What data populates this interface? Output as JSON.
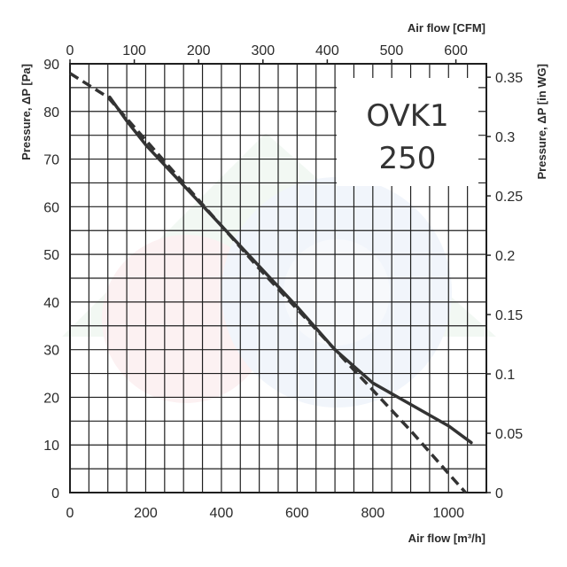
{
  "chart_data": {
    "type": "line",
    "title": "",
    "model_label": [
      "OVK1",
      "250"
    ],
    "xlabel": "Air flow [m³/h]",
    "x2label": "Air flow [CFM]",
    "ylabel": "Pressure, ΔP [Pa]",
    "y2label": "Pressure, ΔP [in WG]",
    "xlim": [
      0,
      1100
    ],
    "ylim": [
      0,
      90
    ],
    "x2lim": [
      0,
      647.4
    ],
    "y2lim": [
      0,
      0.3613
    ],
    "xticks": [
      "0",
      "200",
      "400",
      "600",
      "800",
      "1000"
    ],
    "xticks_values": [
      0,
      200,
      400,
      600,
      800,
      1000
    ],
    "yticks": [
      "0",
      "10",
      "20",
      "30",
      "40",
      "50",
      "60",
      "70",
      "80",
      "90"
    ],
    "yticks_values": [
      0,
      10,
      20,
      30,
      40,
      50,
      60,
      70,
      80,
      90
    ],
    "x2ticks": [
      "0",
      "100",
      "200",
      "300",
      "400",
      "500",
      "600"
    ],
    "x2ticks_values": [
      0,
      100,
      200,
      300,
      400,
      500,
      600
    ],
    "y2ticks": [
      "0",
      "0.05",
      "0.1",
      "0.15",
      "0.2",
      "0.25",
      "0.3",
      "0.35"
    ],
    "y2ticks_values": [
      0,
      0.05,
      0.1,
      0.15,
      0.2,
      0.25,
      0.3,
      0.35
    ],
    "grid": true,
    "series": [
      {
        "style": "solid",
        "color": "#333333",
        "x": [
          105,
          150,
          200,
          300,
          400,
          500,
          600,
          700,
          800,
          900,
          1000,
          1060
        ],
        "y": [
          83,
          78,
          73,
          64.5,
          56,
          47.5,
          39,
          30,
          23,
          18.5,
          14,
          10.5
        ]
      },
      {
        "style": "dashed",
        "color": "#333333",
        "x": [
          0,
          100,
          200,
          300,
          400,
          500,
          600,
          700,
          800,
          900,
          1000,
          1045
        ],
        "y": [
          88,
          83,
          74,
          65,
          56,
          47,
          38.5,
          30,
          21.5,
          13,
          4,
          0
        ]
      }
    ]
  }
}
